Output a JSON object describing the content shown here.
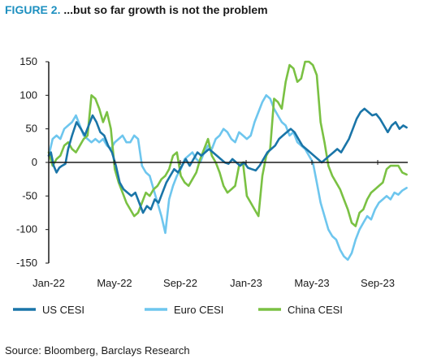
{
  "title": {
    "label": "FIGURE 2.",
    "text": " ...but so far growth is not the problem"
  },
  "source": "Source: Bloomberg, Barclays Research",
  "chart_data": {
    "type": "line",
    "x_ticks": [
      "Jan-22",
      "May-22",
      "Sep-22",
      "Jan-23",
      "May-23",
      "Sep-23"
    ],
    "y_ticks": [
      "150",
      "100",
      "50",
      "0",
      "-50",
      "-100",
      "-150"
    ],
    "ylim": [
      -150,
      150
    ],
    "xlim": [
      "2022-01-01",
      "2023-10-10"
    ],
    "grid": false,
    "legend_position": "bottom",
    "series": [
      {
        "name": "US CESI",
        "color": "#1a75a8",
        "points": [
          [
            "2022-01-01",
            10
          ],
          [
            "2022-01-05",
            15
          ],
          [
            "2022-01-10",
            -5
          ],
          [
            "2022-01-15",
            -15
          ],
          [
            "2022-01-20",
            -8
          ],
          [
            "2022-01-25",
            -5
          ],
          [
            "2022-01-31",
            -2
          ],
          [
            "2022-02-05",
            20
          ],
          [
            "2022-02-12",
            40
          ],
          [
            "2022-02-20",
            60
          ],
          [
            "2022-02-28",
            50
          ],
          [
            "2022-03-07",
            40
          ],
          [
            "2022-03-14",
            55
          ],
          [
            "2022-03-21",
            70
          ],
          [
            "2022-03-28",
            60
          ],
          [
            "2022-04-04",
            45
          ],
          [
            "2022-04-11",
            40
          ],
          [
            "2022-04-18",
            25
          ],
          [
            "2022-04-25",
            15
          ],
          [
            "2022-05-02",
            -5
          ],
          [
            "2022-05-09",
            -30
          ],
          [
            "2022-05-16",
            -40
          ],
          [
            "2022-05-23",
            -45
          ],
          [
            "2022-05-30",
            -50
          ],
          [
            "2022-06-06",
            -45
          ],
          [
            "2022-06-13",
            -60
          ],
          [
            "2022-06-20",
            -75
          ],
          [
            "2022-06-27",
            -65
          ],
          [
            "2022-07-04",
            -70
          ],
          [
            "2022-07-11",
            -55
          ],
          [
            "2022-07-18",
            -60
          ],
          [
            "2022-07-25",
            -45
          ],
          [
            "2022-08-01",
            -30
          ],
          [
            "2022-08-08",
            -20
          ],
          [
            "2022-08-15",
            -10
          ],
          [
            "2022-08-22",
            -15
          ],
          [
            "2022-08-29",
            -5
          ],
          [
            "2022-09-05",
            5
          ],
          [
            "2022-09-12",
            -5
          ],
          [
            "2022-09-19",
            5
          ],
          [
            "2022-09-26",
            15
          ],
          [
            "2022-10-03",
            10
          ],
          [
            "2022-10-10",
            15
          ],
          [
            "2022-10-17",
            20
          ],
          [
            "2022-10-24",
            15
          ],
          [
            "2022-10-31",
            10
          ],
          [
            "2022-11-07",
            5
          ],
          [
            "2022-11-14",
            0
          ],
          [
            "2022-11-21",
            -2
          ],
          [
            "2022-11-28",
            5
          ],
          [
            "2022-12-05",
            0
          ],
          [
            "2022-12-12",
            -5
          ],
          [
            "2022-12-19",
            0
          ],
          [
            "2022-12-26",
            -8
          ],
          [
            "2023-01-02",
            -10
          ],
          [
            "2023-01-09",
            -12
          ],
          [
            "2023-01-16",
            -5
          ],
          [
            "2023-01-23",
            5
          ],
          [
            "2023-01-30",
            15
          ],
          [
            "2023-02-06",
            20
          ],
          [
            "2023-02-13",
            25
          ],
          [
            "2023-02-20",
            35
          ],
          [
            "2023-02-27",
            40
          ],
          [
            "2023-03-06",
            45
          ],
          [
            "2023-03-13",
            50
          ],
          [
            "2023-03-20",
            45
          ],
          [
            "2023-03-27",
            35
          ],
          [
            "2023-04-03",
            25
          ],
          [
            "2023-04-10",
            20
          ],
          [
            "2023-04-17",
            15
          ],
          [
            "2023-04-24",
            10
          ],
          [
            "2023-05-01",
            5
          ],
          [
            "2023-05-08",
            0
          ],
          [
            "2023-05-15",
            5
          ],
          [
            "2023-05-22",
            10
          ],
          [
            "2023-05-29",
            15
          ],
          [
            "2023-06-05",
            20
          ],
          [
            "2023-06-12",
            15
          ],
          [
            "2023-06-19",
            25
          ],
          [
            "2023-06-26",
            35
          ],
          [
            "2023-07-03",
            50
          ],
          [
            "2023-07-10",
            65
          ],
          [
            "2023-07-17",
            75
          ],
          [
            "2023-07-24",
            80
          ],
          [
            "2023-07-31",
            75
          ],
          [
            "2023-08-07",
            70
          ],
          [
            "2023-08-14",
            72
          ],
          [
            "2023-08-21",
            65
          ],
          [
            "2023-08-28",
            55
          ],
          [
            "2023-09-04",
            45
          ],
          [
            "2023-09-11",
            55
          ],
          [
            "2023-09-18",
            60
          ],
          [
            "2023-09-25",
            50
          ],
          [
            "2023-10-02",
            55
          ],
          [
            "2023-10-08",
            52
          ]
        ]
      },
      {
        "name": "Euro CESI",
        "color": "#6ec6ee",
        "points": [
          [
            "2022-01-01",
            10
          ],
          [
            "2022-01-08",
            35
          ],
          [
            "2022-01-15",
            40
          ],
          [
            "2022-01-22",
            35
          ],
          [
            "2022-01-29",
            50
          ],
          [
            "2022-02-05",
            55
          ],
          [
            "2022-02-12",
            60
          ],
          [
            "2022-02-19",
            70
          ],
          [
            "2022-02-26",
            55
          ],
          [
            "2022-03-05",
            40
          ],
          [
            "2022-03-12",
            35
          ],
          [
            "2022-03-19",
            30
          ],
          [
            "2022-03-26",
            35
          ],
          [
            "2022-04-02",
            30
          ],
          [
            "2022-04-09",
            35
          ],
          [
            "2022-04-16",
            25
          ],
          [
            "2022-04-23",
            20
          ],
          [
            "2022-04-30",
            30
          ],
          [
            "2022-05-07",
            35
          ],
          [
            "2022-05-14",
            40
          ],
          [
            "2022-05-21",
            30
          ],
          [
            "2022-05-28",
            30
          ],
          [
            "2022-06-04",
            40
          ],
          [
            "2022-06-11",
            35
          ],
          [
            "2022-06-18",
            -5
          ],
          [
            "2022-06-25",
            -15
          ],
          [
            "2022-07-02",
            -20
          ],
          [
            "2022-07-09",
            -40
          ],
          [
            "2022-07-16",
            -60
          ],
          [
            "2022-07-23",
            -80
          ],
          [
            "2022-07-30",
            -105
          ],
          [
            "2022-08-06",
            -55
          ],
          [
            "2022-08-13",
            -35
          ],
          [
            "2022-08-20",
            -20
          ],
          [
            "2022-08-27",
            -10
          ],
          [
            "2022-09-03",
            5
          ],
          [
            "2022-09-10",
            10
          ],
          [
            "2022-09-17",
            15
          ],
          [
            "2022-09-24",
            5
          ],
          [
            "2022-10-01",
            0
          ],
          [
            "2022-10-08",
            15
          ],
          [
            "2022-10-15",
            25
          ],
          [
            "2022-10-22",
            20
          ],
          [
            "2022-10-29",
            35
          ],
          [
            "2022-11-05",
            40
          ],
          [
            "2022-11-12",
            50
          ],
          [
            "2022-11-19",
            45
          ],
          [
            "2022-11-26",
            35
          ],
          [
            "2022-12-03",
            30
          ],
          [
            "2022-12-10",
            45
          ],
          [
            "2022-12-17",
            40
          ],
          [
            "2022-12-24",
            35
          ],
          [
            "2022-12-31",
            40
          ],
          [
            "2023-01-07",
            60
          ],
          [
            "2023-01-14",
            75
          ],
          [
            "2023-01-21",
            90
          ],
          [
            "2023-01-28",
            100
          ],
          [
            "2023-02-04",
            95
          ],
          [
            "2023-02-11",
            80
          ],
          [
            "2023-02-18",
            70
          ],
          [
            "2023-02-25",
            60
          ],
          [
            "2023-03-04",
            55
          ],
          [
            "2023-03-11",
            40
          ],
          [
            "2023-03-18",
            45
          ],
          [
            "2023-03-25",
            30
          ],
          [
            "2023-04-01",
            25
          ],
          [
            "2023-04-08",
            20
          ],
          [
            "2023-04-15",
            10
          ],
          [
            "2023-04-22",
            0
          ],
          [
            "2023-04-29",
            -30
          ],
          [
            "2023-05-06",
            -60
          ],
          [
            "2023-05-13",
            -80
          ],
          [
            "2023-05-20",
            -100
          ],
          [
            "2023-05-27",
            -110
          ],
          [
            "2023-06-03",
            -115
          ],
          [
            "2023-06-10",
            -130
          ],
          [
            "2023-06-17",
            -140
          ],
          [
            "2023-06-24",
            -145
          ],
          [
            "2023-07-01",
            -135
          ],
          [
            "2023-07-08",
            -115
          ],
          [
            "2023-07-15",
            -100
          ],
          [
            "2023-07-22",
            -90
          ],
          [
            "2023-07-29",
            -80
          ],
          [
            "2023-08-05",
            -85
          ],
          [
            "2023-08-12",
            -70
          ],
          [
            "2023-08-19",
            -60
          ],
          [
            "2023-08-26",
            -55
          ],
          [
            "2023-09-02",
            -50
          ],
          [
            "2023-09-09",
            -55
          ],
          [
            "2023-09-16",
            -45
          ],
          [
            "2023-09-23",
            -48
          ],
          [
            "2023-09-30",
            -42
          ],
          [
            "2023-10-08",
            -38
          ]
        ]
      },
      {
        "name": "China CESI",
        "color": "#7ac143",
        "points": [
          [
            "2022-01-01",
            15
          ],
          [
            "2022-01-08",
            -5
          ],
          [
            "2022-01-15",
            5
          ],
          [
            "2022-01-22",
            10
          ],
          [
            "2022-01-29",
            25
          ],
          [
            "2022-02-05",
            30
          ],
          [
            "2022-02-12",
            20
          ],
          [
            "2022-02-19",
            15
          ],
          [
            "2022-02-26",
            25
          ],
          [
            "2022-03-05",
            35
          ],
          [
            "2022-03-12",
            40
          ],
          [
            "2022-03-19",
            100
          ],
          [
            "2022-03-26",
            95
          ],
          [
            "2022-04-02",
            80
          ],
          [
            "2022-04-09",
            60
          ],
          [
            "2022-04-16",
            75
          ],
          [
            "2022-04-23",
            50
          ],
          [
            "2022-04-30",
            -10
          ],
          [
            "2022-05-07",
            -30
          ],
          [
            "2022-05-14",
            -45
          ],
          [
            "2022-05-21",
            -60
          ],
          [
            "2022-05-28",
            -70
          ],
          [
            "2022-06-04",
            -80
          ],
          [
            "2022-06-11",
            -75
          ],
          [
            "2022-06-18",
            -60
          ],
          [
            "2022-06-25",
            -45
          ],
          [
            "2022-07-02",
            -50
          ],
          [
            "2022-07-09",
            -40
          ],
          [
            "2022-07-16",
            -35
          ],
          [
            "2022-07-23",
            -25
          ],
          [
            "2022-07-30",
            -20
          ],
          [
            "2022-08-06",
            -10
          ],
          [
            "2022-08-13",
            10
          ],
          [
            "2022-08-20",
            15
          ],
          [
            "2022-08-27",
            -20
          ],
          [
            "2022-09-03",
            -30
          ],
          [
            "2022-09-10",
            -35
          ],
          [
            "2022-09-17",
            -25
          ],
          [
            "2022-09-24",
            -15
          ],
          [
            "2022-10-01",
            5
          ],
          [
            "2022-10-08",
            20
          ],
          [
            "2022-10-15",
            35
          ],
          [
            "2022-10-22",
            10
          ],
          [
            "2022-10-29",
            0
          ],
          [
            "2022-11-05",
            -15
          ],
          [
            "2022-11-12",
            -35
          ],
          [
            "2022-11-19",
            -45
          ],
          [
            "2022-11-26",
            -40
          ],
          [
            "2022-12-03",
            -35
          ],
          [
            "2022-12-10",
            -5
          ],
          [
            "2022-12-17",
            0
          ],
          [
            "2022-12-24",
            -50
          ],
          [
            "2022-12-31",
            -60
          ],
          [
            "2023-01-07",
            -70
          ],
          [
            "2023-01-14",
            -80
          ],
          [
            "2023-01-21",
            -20
          ],
          [
            "2023-01-28",
            10
          ],
          [
            "2023-02-04",
            20
          ],
          [
            "2023-02-11",
            95
          ],
          [
            "2023-02-18",
            90
          ],
          [
            "2023-02-25",
            80
          ],
          [
            "2023-03-04",
            120
          ],
          [
            "2023-03-11",
            145
          ],
          [
            "2023-03-18",
            140
          ],
          [
            "2023-03-25",
            120
          ],
          [
            "2023-04-01",
            125
          ],
          [
            "2023-04-08",
            150
          ],
          [
            "2023-04-15",
            150
          ],
          [
            "2023-04-22",
            145
          ],
          [
            "2023-04-29",
            130
          ],
          [
            "2023-05-06",
            60
          ],
          [
            "2023-05-13",
            30
          ],
          [
            "2023-05-20",
            -5
          ],
          [
            "2023-05-27",
            -20
          ],
          [
            "2023-06-03",
            -30
          ],
          [
            "2023-06-10",
            -40
          ],
          [
            "2023-06-17",
            -55
          ],
          [
            "2023-06-24",
            -70
          ],
          [
            "2023-07-01",
            -90
          ],
          [
            "2023-07-08",
            -95
          ],
          [
            "2023-07-15",
            -75
          ],
          [
            "2023-07-22",
            -70
          ],
          [
            "2023-07-29",
            -55
          ],
          [
            "2023-08-05",
            -45
          ],
          [
            "2023-08-12",
            -40
          ],
          [
            "2023-08-19",
            -35
          ],
          [
            "2023-08-26",
            -30
          ],
          [
            "2023-09-02",
            -10
          ],
          [
            "2023-09-09",
            -5
          ],
          [
            "2023-09-16",
            -5
          ],
          [
            "2023-09-23",
            -5
          ],
          [
            "2023-09-30",
            -15
          ],
          [
            "2023-10-08",
            -18
          ]
        ]
      }
    ]
  }
}
